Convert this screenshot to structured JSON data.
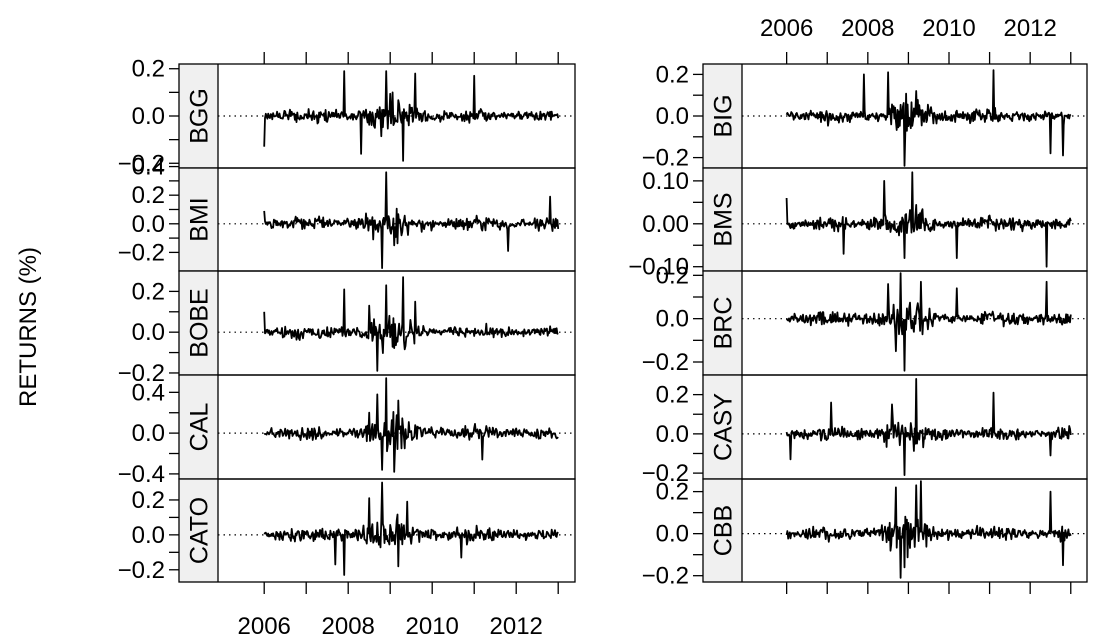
{
  "ylabel": "RETURNS (%)",
  "chart_data": {
    "type": "line",
    "layout": "trellis-two-columns",
    "ylabel": "RETURNS (%)",
    "xlim": [
      2004.9,
      2013.4
    ],
    "xticks": [
      "2006",
      "2008",
      "2010",
      "2012"
    ],
    "x_start": 2006.0,
    "x_end": 2013.0,
    "reference_line": 0,
    "columns": [
      {
        "x_axis_position": "bottom",
        "panels": [
          {
            "name": "BGG",
            "ylim": [
              -0.22,
              0.22
            ],
            "yticks": [
              "−0.2",
              "0.0",
              "0.2"
            ],
            "peaks": [
              [
                2006.0,
                -0.13
              ],
              [
                2007.9,
                0.19
              ],
              [
                2008.3,
                -0.16
              ],
              [
                2008.9,
                0.19
              ],
              [
                2009.3,
                -0.19
              ],
              [
                2009.6,
                0.18
              ],
              [
                2011.0,
                0.17
              ]
            ]
          },
          {
            "name": "BMI",
            "ylim": [
              -0.33,
              0.39
            ],
            "yticks": [
              "−0.2",
              "0.0",
              "0.2",
              "0.4"
            ],
            "peaks": [
              [
                2006.0,
                0.09
              ],
              [
                2008.6,
                -0.11
              ],
              [
                2008.8,
                -0.31
              ],
              [
                2008.9,
                0.36
              ],
              [
                2009.1,
                -0.15
              ],
              [
                2011.8,
                -0.19
              ],
              [
                2012.8,
                0.19
              ]
            ]
          },
          {
            "name": "BOBE",
            "ylim": [
              -0.21,
              0.3
            ],
            "yticks": [
              "−0.2",
              "0.0",
              "0.2"
            ],
            "peaks": [
              [
                2006.0,
                0.1
              ],
              [
                2007.9,
                0.21
              ],
              [
                2008.5,
                0.13
              ],
              [
                2008.7,
                -0.19
              ],
              [
                2008.9,
                0.23
              ],
              [
                2009.3,
                0.27
              ],
              [
                2009.6,
                0.15
              ]
            ]
          },
          {
            "name": "CAL",
            "ylim": [
              -0.45,
              0.57
            ],
            "yticks": [
              "−0.4",
              "0.0",
              "0.4"
            ],
            "peaks": [
              [
                2008.5,
                0.2
              ],
              [
                2008.7,
                0.38
              ],
              [
                2008.8,
                -0.36
              ],
              [
                2008.9,
                0.54
              ],
              [
                2009.1,
                -0.38
              ],
              [
                2009.2,
                0.32
              ],
              [
                2011.2,
                -0.26
              ]
            ]
          },
          {
            "name": "CATO",
            "ylim": [
              -0.27,
              0.32
            ],
            "yticks": [
              "−0.2",
              "0.0",
              "0.2"
            ],
            "peaks": [
              [
                2007.7,
                -0.17
              ],
              [
                2007.9,
                -0.23
              ],
              [
                2008.5,
                0.21
              ],
              [
                2008.8,
                0.3
              ],
              [
                2009.2,
                -0.18
              ],
              [
                2009.4,
                0.19
              ],
              [
                2010.7,
                -0.13
              ]
            ]
          }
        ]
      },
      {
        "x_axis_position": "top",
        "panels": [
          {
            "name": "BIG",
            "ylim": [
              -0.25,
              0.25
            ],
            "yticks": [
              "−0.2",
              "0.0",
              "0.2"
            ],
            "peaks": [
              [
                2007.9,
                0.2
              ],
              [
                2008.5,
                0.21
              ],
              [
                2008.9,
                -0.24
              ],
              [
                2009.2,
                0.12
              ],
              [
                2011.1,
                0.22
              ],
              [
                2012.5,
                -0.18
              ],
              [
                2012.8,
                -0.19
              ]
            ]
          },
          {
            "name": "BMS",
            "ylim": [
              -0.11,
              0.13
            ],
            "yticks": [
              "−0.10",
              "0.00",
              "0.10"
            ],
            "peaks": [
              [
                2006.0,
                0.06
              ],
              [
                2007.4,
                -0.07
              ],
              [
                2008.4,
                0.1
              ],
              [
                2008.9,
                -0.08
              ],
              [
                2009.1,
                0.12
              ],
              [
                2010.2,
                -0.08
              ],
              [
                2012.4,
                -0.1
              ]
            ]
          },
          {
            "name": "BRC",
            "ylim": [
              -0.26,
              0.22
            ],
            "yticks": [
              "−0.2",
              "0.0",
              "0.2"
            ],
            "peaks": [
              [
                2008.5,
                0.16
              ],
              [
                2008.7,
                -0.15
              ],
              [
                2008.8,
                0.21
              ],
              [
                2008.9,
                -0.24
              ],
              [
                2009.3,
                0.17
              ],
              [
                2010.2,
                0.14
              ],
              [
                2012.4,
                0.17
              ]
            ]
          },
          {
            "name": "CASY",
            "ylim": [
              -0.23,
              0.3
            ],
            "yticks": [
              "−0.2",
              "0.0",
              "0.2"
            ],
            "peaks": [
              [
                2006.1,
                -0.13
              ],
              [
                2007.1,
                0.16
              ],
              [
                2008.6,
                0.15
              ],
              [
                2008.9,
                -0.21
              ],
              [
                2009.2,
                0.28
              ],
              [
                2011.1,
                0.21
              ],
              [
                2012.5,
                -0.11
              ]
            ]
          },
          {
            "name": "CBB",
            "ylim": [
              -0.23,
              0.26
            ],
            "yticks": [
              "−0.2",
              "0.0",
              "0.2"
            ],
            "peaks": [
              [
                2008.7,
                0.22
              ],
              [
                2008.8,
                -0.21
              ],
              [
                2008.9,
                -0.16
              ],
              [
                2009.2,
                0.23
              ],
              [
                2009.3,
                0.25
              ],
              [
                2012.5,
                0.2
              ],
              [
                2012.8,
                -0.15
              ]
            ]
          }
        ]
      }
    ]
  }
}
